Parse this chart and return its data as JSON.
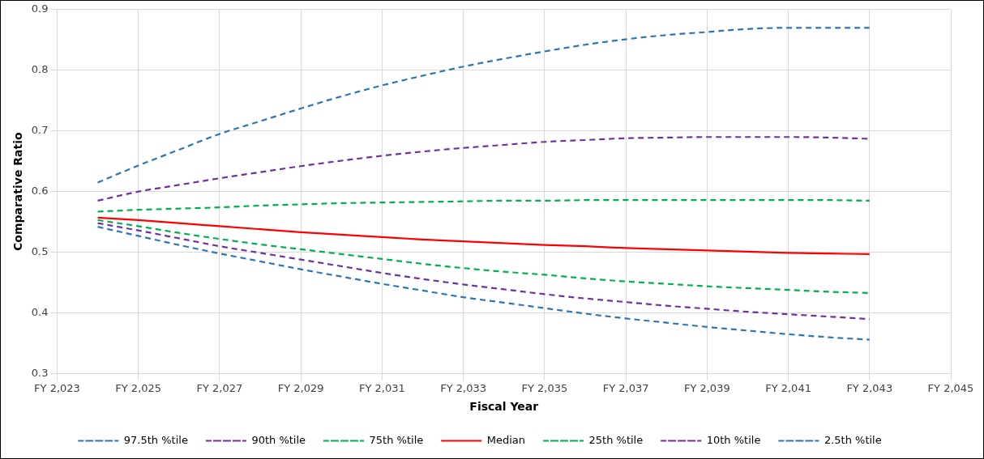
{
  "chart_data": {
    "type": "line",
    "xlabel": "Fiscal Year",
    "ylabel": "Comparative Ratio",
    "categories": [
      "FY 2,023",
      null,
      "FY 2,025",
      null,
      "FY 2,027",
      null,
      "FY 2,029",
      null,
      "FY 2,031",
      null,
      "FY 2,033",
      null,
      "FY 2,035",
      null,
      "FY 2,037",
      null,
      "FY 2,039",
      null,
      "FY 2,041",
      null,
      "FY 2,043",
      null,
      "FY 2,045"
    ],
    "series": [
      {
        "name": "97.5th %tile",
        "color": "#2e75b6",
        "line_style": "dashed",
        "values": [
          null,
          0.615,
          0.643,
          0.669,
          0.695,
          0.716,
          0.737,
          0.757,
          0.775,
          0.791,
          0.806,
          0.819,
          0.831,
          0.842,
          0.851,
          0.858,
          0.863,
          0.868,
          0.87,
          0.87,
          0.87,
          null,
          null
        ]
      },
      {
        "name": "90th %tile",
        "color": "#7030a0",
        "line_style": "dashed",
        "values": [
          null,
          0.585,
          0.6,
          0.611,
          0.622,
          0.632,
          0.642,
          0.651,
          0.659,
          0.666,
          0.672,
          0.677,
          0.682,
          0.685,
          0.688,
          0.689,
          0.69,
          0.69,
          0.69,
          0.689,
          0.687,
          null,
          null
        ]
      },
      {
        "name": "75th %tile",
        "color": "#00b050",
        "line_style": "dashed",
        "values": [
          null,
          0.567,
          0.57,
          0.572,
          0.574,
          0.577,
          0.579,
          0.581,
          0.582,
          0.583,
          0.584,
          0.585,
          0.585,
          0.586,
          0.586,
          0.586,
          0.586,
          0.586,
          0.586,
          0.586,
          0.585,
          null,
          null
        ]
      },
      {
        "name": "Median",
        "color": "#ff0000",
        "line_style": "solid",
        "values": [
          null,
          0.557,
          0.553,
          0.548,
          0.543,
          0.538,
          0.533,
          0.529,
          0.525,
          0.521,
          0.518,
          0.515,
          0.512,
          0.51,
          0.507,
          0.505,
          0.503,
          0.501,
          0.499,
          0.498,
          0.497,
          null,
          null
        ]
      },
      {
        "name": "25th %tile",
        "color": "#00b050",
        "line_style": "dashed",
        "values": [
          null,
          0.553,
          0.543,
          0.532,
          0.522,
          0.513,
          0.505,
          0.497,
          0.489,
          0.481,
          0.474,
          0.468,
          0.463,
          0.457,
          0.452,
          0.448,
          0.444,
          0.441,
          0.438,
          0.435,
          0.433,
          null,
          null
        ]
      },
      {
        "name": "10th %tile",
        "color": "#7030a0",
        "line_style": "dashed",
        "values": [
          null,
          0.548,
          0.536,
          0.523,
          0.51,
          0.499,
          0.488,
          0.477,
          0.466,
          0.456,
          0.447,
          0.439,
          0.431,
          0.424,
          0.418,
          0.412,
          0.407,
          0.402,
          0.398,
          0.394,
          0.39,
          null,
          null
        ]
      },
      {
        "name": "2.5th %tile",
        "color": "#2e75b6",
        "line_style": "dashed",
        "values": [
          null,
          0.542,
          0.527,
          0.512,
          0.498,
          0.485,
          0.472,
          0.46,
          0.448,
          0.437,
          0.426,
          0.417,
          0.408,
          0.399,
          0.391,
          0.384,
          0.377,
          0.371,
          0.365,
          0.36,
          0.356,
          null,
          null
        ]
      }
    ],
    "ylim": [
      0.3,
      0.9
    ],
    "yticks": [
      0.3,
      0.4,
      0.5,
      0.6,
      0.7,
      0.8,
      0.9
    ],
    "grid": true,
    "legend": "bottom",
    "marker": "none"
  }
}
